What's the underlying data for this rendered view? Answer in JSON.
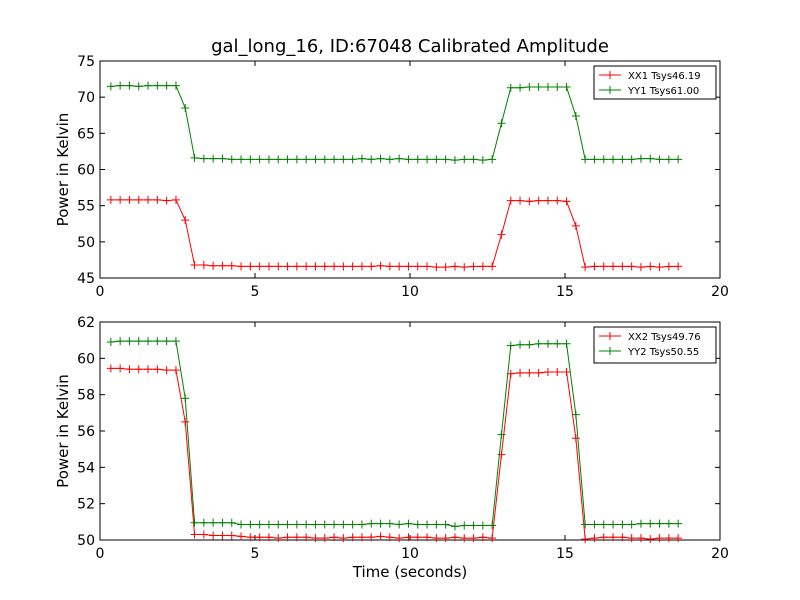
{
  "figure": {
    "title": "gal_long_16, ID:67048 Calibrated Amplitude"
  },
  "chart_data": [
    {
      "type": "line",
      "title": "gal_long_16, ID:67048 Calibrated Amplitude",
      "xlabel": "",
      "ylabel": "Power in Kelvin",
      "xlim": [
        0,
        20
      ],
      "ylim": [
        45,
        75
      ],
      "xticks": [
        "0",
        "5",
        "10",
        "15",
        "20"
      ],
      "yticks": [
        "45",
        "50",
        "55",
        "60",
        "65",
        "70",
        "75"
      ],
      "grid": false,
      "legend_position": "top-right",
      "x": [
        0.35,
        0.65,
        0.95,
        1.25,
        1.55,
        1.85,
        2.15,
        2.45,
        2.75,
        3.05,
        3.35,
        3.65,
        3.95,
        4.25,
        4.55,
        4.85,
        5.15,
        5.45,
        5.75,
        6.05,
        6.35,
        6.65,
        6.95,
        7.25,
        7.55,
        7.85,
        8.15,
        8.45,
        8.75,
        9.05,
        9.35,
        9.65,
        9.95,
        10.25,
        10.55,
        10.85,
        11.15,
        11.45,
        11.75,
        12.05,
        12.35,
        12.65,
        12.95,
        13.25,
        13.55,
        13.85,
        14.15,
        14.45,
        14.75,
        15.05,
        15.35,
        15.65,
        15.95,
        16.25,
        16.55,
        16.85,
        17.15,
        17.45,
        17.75,
        18.05,
        18.35,
        18.65
      ],
      "series": [
        {
          "name": "XX1 Tsys46.19",
          "color": "#ff0000",
          "values": [
            55.8,
            55.8,
            55.8,
            55.8,
            55.8,
            55.8,
            55.7,
            55.8,
            53.0,
            46.8,
            46.8,
            46.7,
            46.7,
            46.7,
            46.6,
            46.6,
            46.6,
            46.6,
            46.6,
            46.6,
            46.6,
            46.6,
            46.6,
            46.6,
            46.6,
            46.6,
            46.6,
            46.6,
            46.6,
            46.7,
            46.6,
            46.6,
            46.6,
            46.6,
            46.6,
            46.5,
            46.5,
            46.6,
            46.5,
            46.6,
            46.6,
            46.6,
            51.0,
            55.7,
            55.7,
            55.6,
            55.7,
            55.7,
            55.7,
            55.6,
            52.2,
            46.5,
            46.6,
            46.6,
            46.6,
            46.6,
            46.6,
            46.5,
            46.6,
            46.5,
            46.6,
            46.6
          ]
        },
        {
          "name": "YY1 Tsys61.00",
          "color": "#008000",
          "values": [
            71.5,
            71.6,
            71.6,
            71.5,
            71.6,
            71.6,
            71.6,
            71.6,
            68.5,
            61.6,
            61.5,
            61.5,
            61.5,
            61.4,
            61.4,
            61.4,
            61.4,
            61.4,
            61.4,
            61.4,
            61.4,
            61.4,
            61.4,
            61.4,
            61.4,
            61.4,
            61.4,
            61.5,
            61.4,
            61.5,
            61.4,
            61.5,
            61.4,
            61.4,
            61.4,
            61.4,
            61.4,
            61.3,
            61.4,
            61.4,
            61.3,
            61.4,
            66.4,
            71.3,
            71.3,
            71.4,
            71.4,
            71.4,
            71.4,
            71.4,
            67.4,
            61.4,
            61.4,
            61.4,
            61.4,
            61.4,
            61.4,
            61.5,
            61.5,
            61.4,
            61.4,
            61.4
          ]
        }
      ]
    },
    {
      "type": "line",
      "title": "",
      "xlabel": "Time (seconds)",
      "ylabel": "Power in Kelvin",
      "xlim": [
        0,
        20
      ],
      "ylim": [
        50,
        62
      ],
      "xticks": [
        "0",
        "5",
        "10",
        "15",
        "20"
      ],
      "yticks": [
        "50",
        "52",
        "54",
        "56",
        "58",
        "60",
        "62"
      ],
      "grid": false,
      "legend_position": "top-right",
      "x": [
        0.35,
        0.65,
        0.95,
        1.25,
        1.55,
        1.85,
        2.15,
        2.45,
        2.75,
        3.05,
        3.35,
        3.65,
        3.95,
        4.25,
        4.55,
        4.85,
        5.15,
        5.45,
        5.75,
        6.05,
        6.35,
        6.65,
        6.95,
        7.25,
        7.55,
        7.85,
        8.15,
        8.45,
        8.75,
        9.05,
        9.35,
        9.65,
        9.95,
        10.25,
        10.55,
        10.85,
        11.15,
        11.45,
        11.75,
        12.05,
        12.35,
        12.65,
        12.95,
        13.25,
        13.55,
        13.85,
        14.15,
        14.45,
        14.75,
        15.05,
        15.35,
        15.65,
        15.95,
        16.25,
        16.55,
        16.85,
        17.15,
        17.45,
        17.75,
        18.05,
        18.35,
        18.65
      ],
      "series": [
        {
          "name": "XX2 Tsys49.76",
          "color": "#ff0000",
          "values": [
            59.45,
            59.45,
            59.4,
            59.4,
            59.4,
            59.4,
            59.35,
            59.35,
            56.5,
            50.3,
            50.3,
            50.25,
            50.25,
            50.25,
            50.2,
            50.15,
            50.15,
            50.15,
            50.1,
            50.15,
            50.15,
            50.15,
            50.1,
            50.1,
            50.15,
            50.1,
            50.15,
            50.15,
            50.15,
            50.2,
            50.15,
            50.1,
            50.15,
            50.15,
            50.15,
            50.1,
            50.1,
            50.15,
            50.1,
            50.1,
            50.15,
            50.1,
            54.7,
            59.15,
            59.2,
            59.2,
            59.2,
            59.25,
            59.25,
            59.25,
            55.6,
            50.05,
            50.1,
            50.15,
            50.15,
            50.15,
            50.1,
            50.1,
            50.05,
            50.1,
            50.1,
            50.1
          ]
        },
        {
          "name": "YY2 Tsys50.55",
          "color": "#008000",
          "values": [
            60.9,
            60.95,
            60.95,
            60.95,
            60.95,
            60.95,
            60.95,
            60.95,
            57.8,
            50.95,
            50.95,
            50.95,
            50.95,
            50.95,
            50.85,
            50.85,
            50.85,
            50.85,
            50.85,
            50.85,
            50.85,
            50.85,
            50.85,
            50.85,
            50.85,
            50.85,
            50.85,
            50.85,
            50.9,
            50.9,
            50.9,
            50.85,
            50.9,
            50.85,
            50.85,
            50.85,
            50.85,
            50.75,
            50.8,
            50.8,
            50.8,
            50.8,
            55.8,
            60.7,
            60.75,
            60.75,
            60.8,
            60.8,
            60.8,
            60.8,
            56.9,
            50.85,
            50.85,
            50.85,
            50.85,
            50.85,
            50.85,
            50.9,
            50.9,
            50.9,
            50.9,
            50.9
          ]
        }
      ]
    }
  ]
}
